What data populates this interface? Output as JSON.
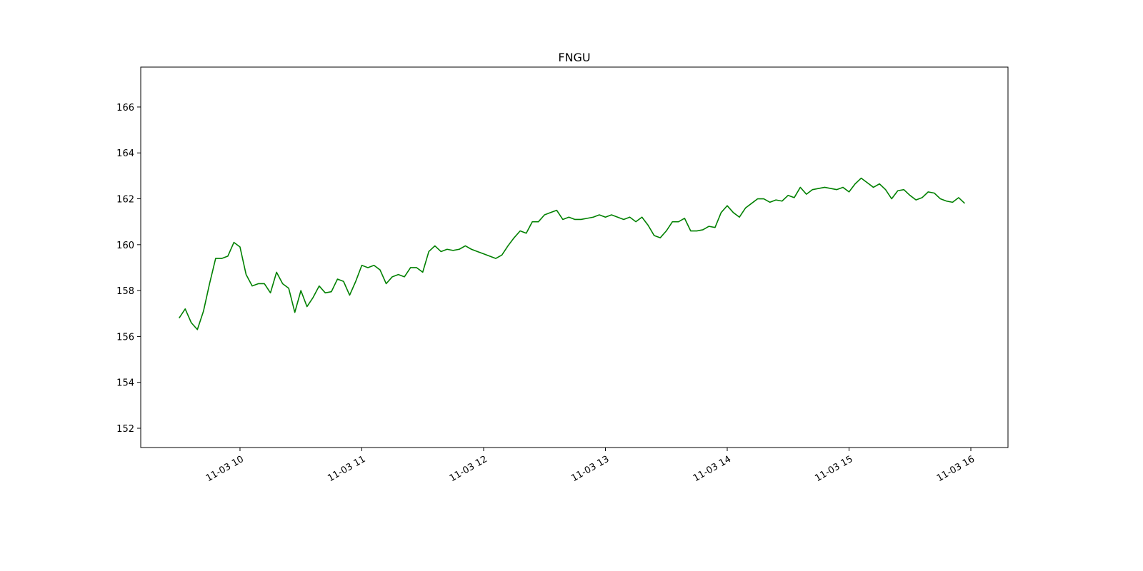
{
  "chart_data": {
    "type": "line",
    "title": "FNGU",
    "color": "#008000",
    "x": [
      9.5,
      9.55,
      9.6,
      9.65,
      9.7,
      9.75,
      9.8,
      9.85,
      9.9,
      9.95,
      10,
      10.05,
      10.1,
      10.15,
      10.2,
      10.25,
      10.3,
      10.35,
      10.4,
      10.45,
      10.5,
      10.55,
      10.6,
      10.65,
      10.7,
      10.75,
      10.8,
      10.85,
      10.9,
      10.95,
      11,
      11.05,
      11.1,
      11.15,
      11.2,
      11.25,
      11.3,
      11.35,
      11.4,
      11.45,
      11.5,
      11.55,
      11.6,
      11.65,
      11.7,
      11.75,
      11.8,
      11.85,
      11.9,
      11.95,
      12,
      12.05,
      12.1,
      12.15,
      12.2,
      12.25,
      12.3,
      12.35,
      12.4,
      12.45,
      12.5,
      12.55,
      12.6,
      12.65,
      12.7,
      12.75,
      12.8,
      12.85,
      12.9,
      12.95,
      13,
      13.05,
      13.1,
      13.15,
      13.2,
      13.25,
      13.3,
      13.35,
      13.4,
      13.45,
      13.5,
      13.55,
      13.6,
      13.65,
      13.7,
      13.75,
      13.8,
      13.85,
      13.9,
      13.95,
      14,
      14.05,
      14.1,
      14.15,
      14.2,
      14.25,
      14.3,
      14.35,
      14.4,
      14.45,
      14.5,
      14.55,
      14.6,
      14.65,
      14.7,
      14.75,
      14.8,
      14.85,
      14.9,
      14.95,
      15,
      15.05,
      15.1,
      15.15,
      15.2,
      15.25,
      15.3,
      15.35,
      15.4,
      15.45,
      15.5,
      15.55,
      15.6,
      15.65,
      15.7,
      15.75,
      15.8,
      15.85,
      15.9,
      15.95
    ],
    "values": [
      156.8,
      157.2,
      156.6,
      156.3,
      157.1,
      158.3,
      159.4,
      159.4,
      159.5,
      160.1,
      159.9,
      158.7,
      158.2,
      158.3,
      158.3,
      157.9,
      158.8,
      158.3,
      158.1,
      157.05,
      158.0,
      157.3,
      157.7,
      158.2,
      157.9,
      157.95,
      158.5,
      158.4,
      157.8,
      158.4,
      159.1,
      159.0,
      159.1,
      158.9,
      158.3,
      158.6,
      158.7,
      158.6,
      159.0,
      159.0,
      158.8,
      159.7,
      159.95,
      159.7,
      159.8,
      159.75,
      159.8,
      159.95,
      159.8,
      159.7,
      159.6,
      159.5,
      159.4,
      159.55,
      159.95,
      160.3,
      160.6,
      160.5,
      161.0,
      161.0,
      161.3,
      161.4,
      161.5,
      161.1,
      161.2,
      161.1,
      161.1,
      161.15,
      161.2,
      161.3,
      161.2,
      161.3,
      161.2,
      161.1,
      161.2,
      161.0,
      161.2,
      160.85,
      160.4,
      160.3,
      160.6,
      161.0,
      161.0,
      161.15,
      160.6,
      160.6,
      160.65,
      160.8,
      160.75,
      161.4,
      161.7,
      161.4,
      161.2,
      161.6,
      161.8,
      162.0,
      162.0,
      161.85,
      161.95,
      161.9,
      162.15,
      162.05,
      162.5,
      162.2,
      162.4,
      162.45,
      162.5,
      162.45,
      162.4,
      162.5,
      162.3,
      162.65,
      162.9,
      162.7,
      162.5,
      162.65,
      162.4,
      162.0,
      162.35,
      162.4,
      162.15,
      161.95,
      162.05,
      162.3,
      162.25,
      162.0,
      161.9,
      161.85,
      162.05,
      161.8
    ],
    "xlim": [
      9.185,
      16.305
    ],
    "xticks": [
      {
        "value": 10,
        "label": "11-03 10"
      },
      {
        "value": 11,
        "label": "11-03 11"
      },
      {
        "value": 12,
        "label": "11-03 12"
      },
      {
        "value": 13,
        "label": "11-03 13"
      },
      {
        "value": 14,
        "label": "11-03 14"
      },
      {
        "value": 15,
        "label": "11-03 15"
      },
      {
        "value": 16,
        "label": "11-03 16"
      }
    ],
    "ylim": [
      151.16,
      167.74
    ],
    "yticks": [
      152,
      154,
      156,
      158,
      160,
      162,
      164,
      166
    ]
  }
}
